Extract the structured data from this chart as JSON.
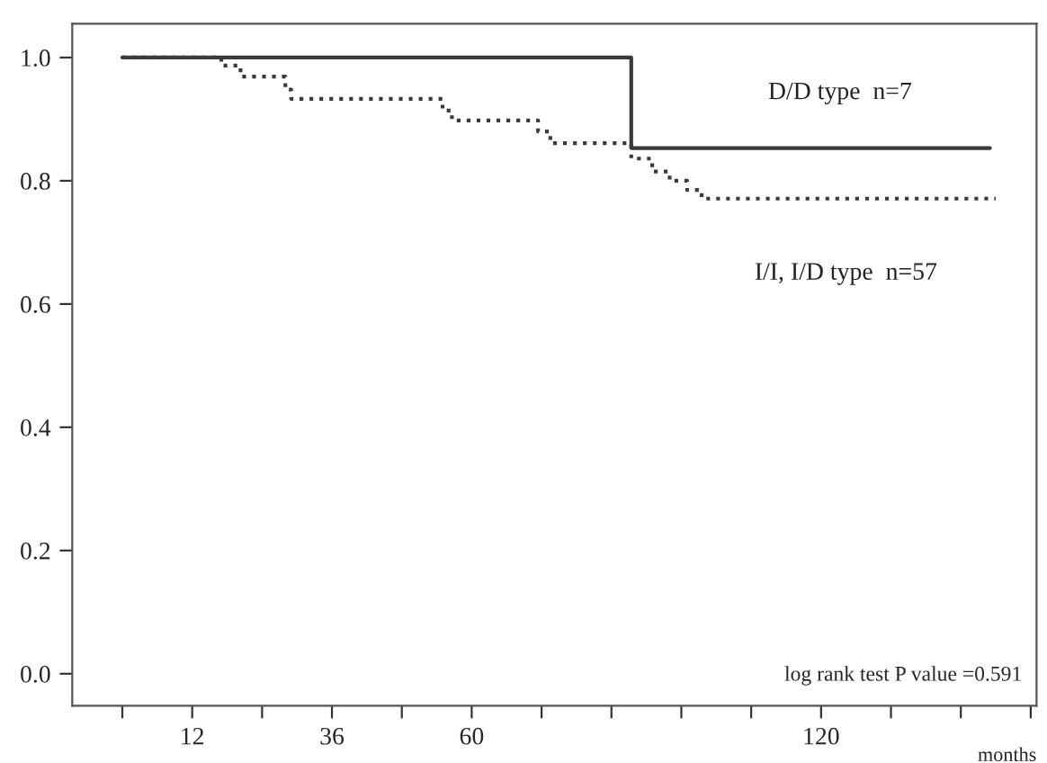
{
  "chart_data": {
    "type": "step",
    "xlabel": "months",
    "series": [
      {
        "name": "D/D type  n=7",
        "color": "#3a3a3a",
        "line_style": "solid",
        "x": [
          0,
          87.4,
          149
        ],
        "values": [
          1.0,
          0.853,
          0.853
        ]
      },
      {
        "name": "I/I, I/D type  n=57",
        "color": "#3a3a3a",
        "line_style": "dotted",
        "x": [
          0,
          17,
          20.3,
          28,
          29,
          55,
          56.6,
          71.4,
          73.5,
          87.4,
          91,
          94,
          97,
          99.5,
          150
        ],
        "values": [
          1.0,
          0.987,
          0.969,
          0.948,
          0.933,
          0.914,
          0.898,
          0.88,
          0.861,
          0.836,
          0.815,
          0.8,
          0.785,
          0.771,
          0.771
        ]
      }
    ],
    "annotations": [
      "log rank test P value =0.591"
    ],
    "xlim": [
      -8.6,
      157
    ],
    "ylim": [
      -0.052,
      1.055
    ],
    "xticks": [
      {
        "value": 0,
        "label": null
      },
      {
        "value": 12,
        "label": "12"
      },
      {
        "value": 24,
        "label": null
      },
      {
        "value": 36,
        "label": "36"
      },
      {
        "value": 48,
        "label": null
      },
      {
        "value": 60,
        "label": "60"
      },
      {
        "value": 72,
        "label": null
      },
      {
        "value": 84,
        "label": null
      },
      {
        "value": 96,
        "label": null
      },
      {
        "value": 108,
        "label": null
      },
      {
        "value": 120,
        "label": "120"
      },
      {
        "value": 132,
        "label": null
      },
      {
        "value": 144,
        "label": null
      },
      {
        "value": 156,
        "label": null
      }
    ],
    "yticks": [
      {
        "value": 0,
        "label": "0.0"
      },
      {
        "value": 0.2,
        "label": "0.2"
      },
      {
        "value": 0.4,
        "label": "0.4"
      },
      {
        "value": 0.6,
        "label": "0.6"
      },
      {
        "value": 0.8,
        "label": "0.8"
      },
      {
        "value": 1.0,
        "label": "1.0"
      }
    ],
    "grid": false,
    "legend": false
  }
}
